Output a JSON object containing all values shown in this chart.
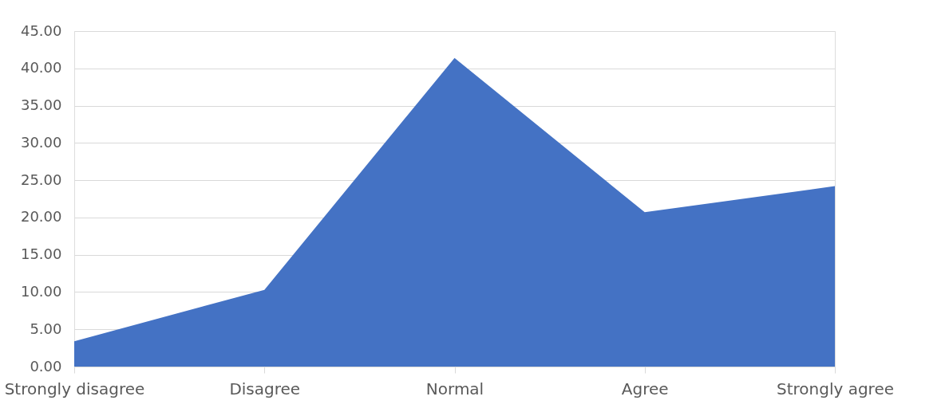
{
  "chart_data": {
    "type": "area",
    "categories": [
      "Strongly disagree",
      "Disagree",
      "Normal",
      "Agree",
      "Strongly agree"
    ],
    "values": [
      3.4,
      10.3,
      41.4,
      20.7,
      24.2
    ],
    "color": "#4472c4",
    "ylim": [
      0,
      45
    ],
    "yticks": [
      {
        "value": 0,
        "label": "0.00"
      },
      {
        "value": 5,
        "label": "5.00"
      },
      {
        "value": 10,
        "label": "10.00"
      },
      {
        "value": 15,
        "label": "15.00"
      },
      {
        "value": 20,
        "label": "20.00"
      },
      {
        "value": 25,
        "label": "25.00"
      },
      {
        "value": 30,
        "label": "30.00"
      },
      {
        "value": 35,
        "label": "35.00"
      },
      {
        "value": 40,
        "label": "40.00"
      },
      {
        "value": 45,
        "label": "45.00"
      }
    ],
    "grid": "y"
  }
}
